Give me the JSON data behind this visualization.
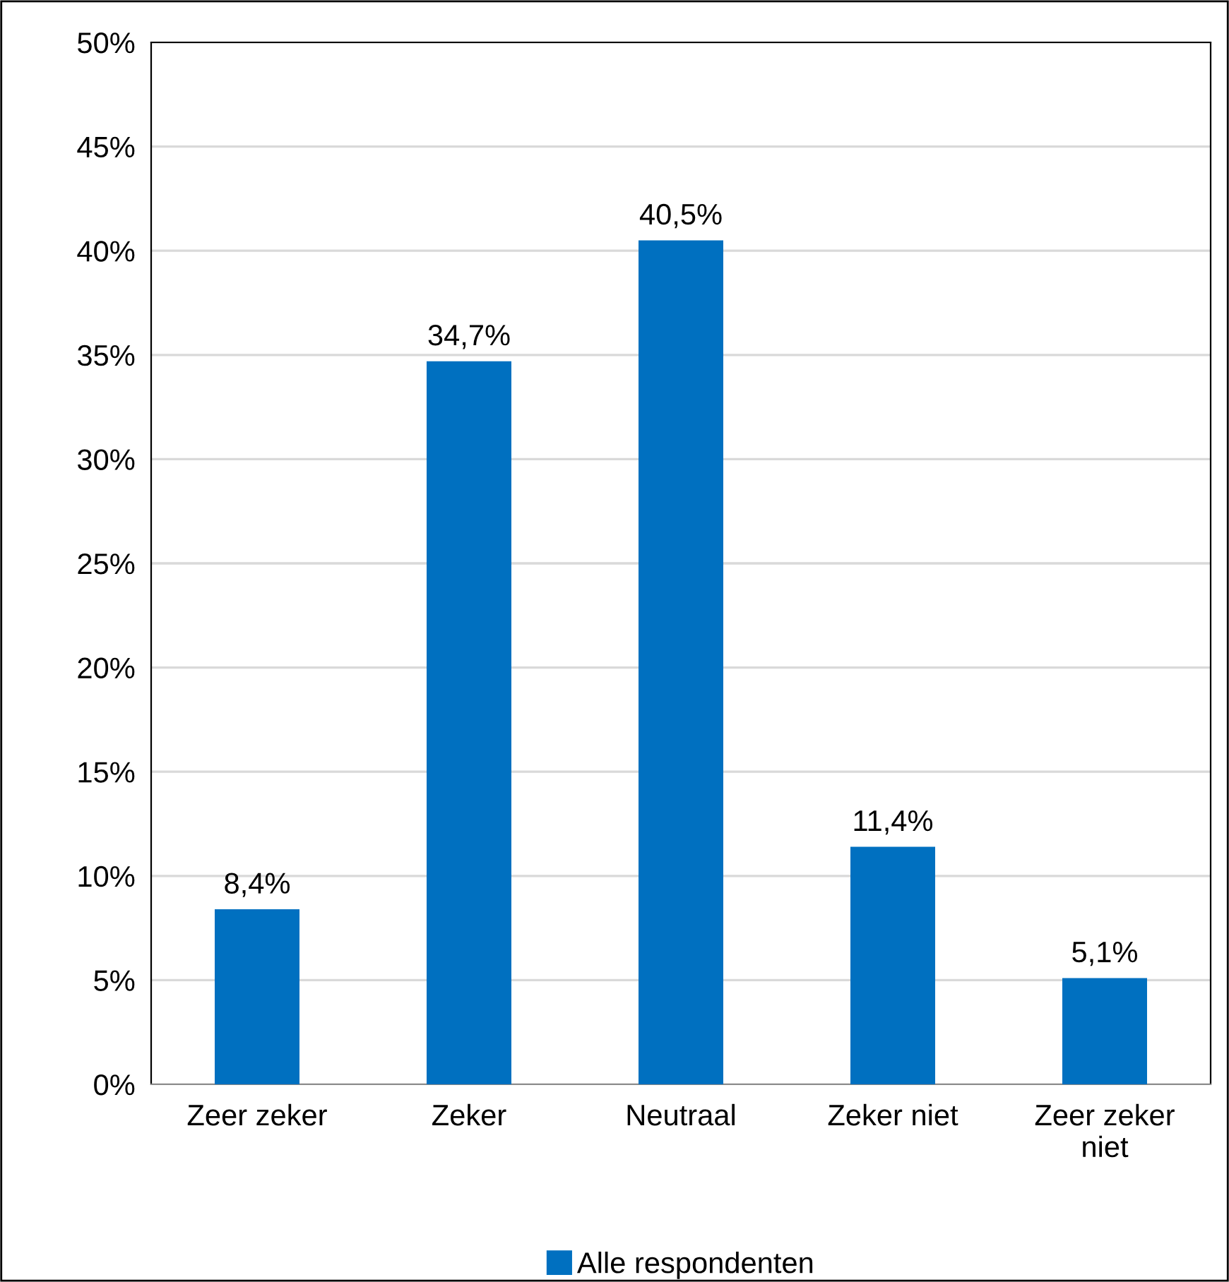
{
  "chart_data": {
    "type": "bar",
    "categories": [
      "Zeer zeker",
      "Zeker",
      "Neutraal",
      "Zeker niet",
      "Zeer zeker niet"
    ],
    "series": [
      {
        "name": "Alle respondenten",
        "color": "#0070c0",
        "values": [
          8.4,
          34.7,
          40.5,
          11.4,
          5.1
        ],
        "value_labels": [
          "8,4%",
          "34,7%",
          "40,5%",
          "11,4%",
          "5,1%"
        ]
      }
    ],
    "ylim": [
      0,
      50
    ],
    "yticks": [
      {
        "value": 0,
        "label": "0%"
      },
      {
        "value": 5,
        "label": "5%"
      },
      {
        "value": 10,
        "label": "10%"
      },
      {
        "value": 15,
        "label": "15%"
      },
      {
        "value": 20,
        "label": "20%"
      },
      {
        "value": 25,
        "label": "25%"
      },
      {
        "value": 30,
        "label": "30%"
      },
      {
        "value": 35,
        "label": "35%"
      },
      {
        "value": 40,
        "label": "40%"
      },
      {
        "value": 45,
        "label": "45%"
      },
      {
        "value": 50,
        "label": "50%"
      }
    ],
    "grid": "y",
    "legend": "bottom"
  }
}
